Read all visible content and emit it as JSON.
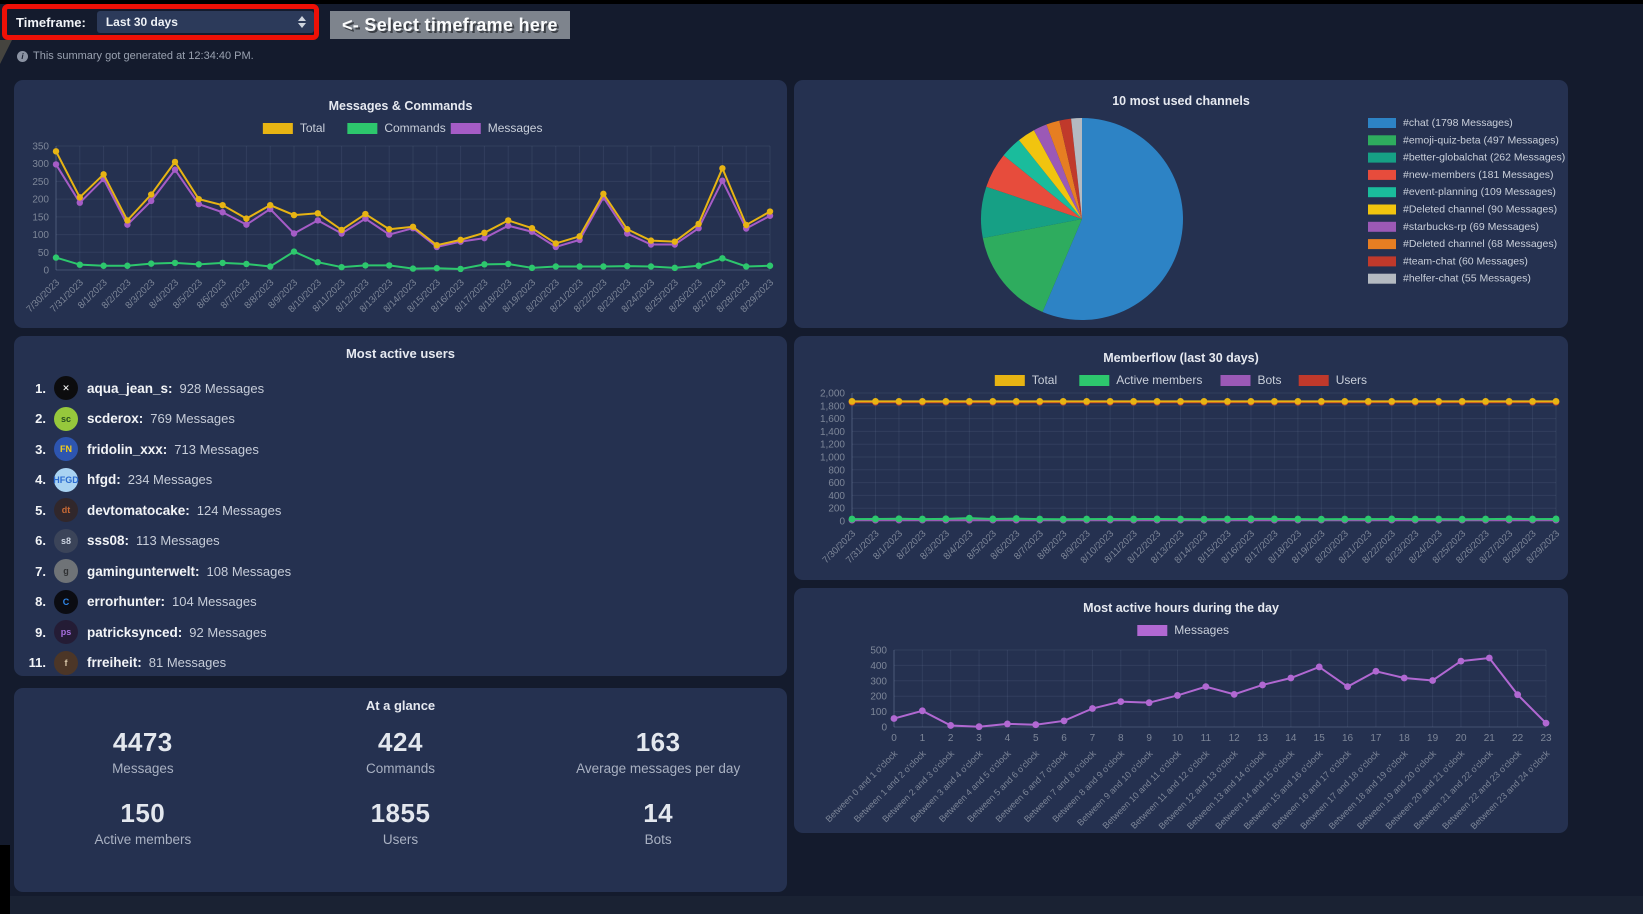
{
  "header": {
    "timeframe_label": "Timeframe:",
    "timeframe_value": "Last 30 days",
    "hint_label": "<- Select timeframe here",
    "highlight_color": "#ee1006",
    "hint_bg": "#7e848d"
  },
  "info_banner": {
    "icon": "info-icon",
    "text": "This summary got generated at 12:34:40 PM."
  },
  "most_active_users": {
    "title": "Most active users",
    "users": [
      {
        "rank": "1.",
        "name": "aqua_jean_s",
        "count": "928 Messages",
        "avatar": {
          "bg": "#0c0c0e",
          "fg": "#ffffff",
          "text": "✕"
        }
      },
      {
        "rank": "2.",
        "name": "scderox",
        "count": "769 Messages",
        "avatar": {
          "bg": "#96c83c",
          "fg": "#27501f",
          "text": "sc"
        }
      },
      {
        "rank": "3.",
        "name": "fridolin_xxx",
        "count": "713 Messages",
        "avatar": {
          "bg": "#2d55b0",
          "fg": "#f5cf1b",
          "text": "FN"
        }
      },
      {
        "rank": "4.",
        "name": "hfgd",
        "count": "234 Messages",
        "avatar": {
          "bg": "#a9d3f2",
          "fg": "#2b6bd0",
          "text": "HFGD"
        }
      },
      {
        "rank": "5.",
        "name": "devtomatocake",
        "count": "124 Messages",
        "avatar": {
          "bg": "#31272b",
          "fg": "#c96a35",
          "text": "dt"
        }
      },
      {
        "rank": "6.",
        "name": "sss08",
        "count": "113 Messages",
        "avatar": {
          "bg": "#3b4459",
          "fg": "#cdd5e2",
          "text": "s8"
        }
      },
      {
        "rank": "7.",
        "name": "gamingunterwelt",
        "count": "108 Messages",
        "avatar": {
          "bg": "#6f7377",
          "fg": "#2f3133",
          "text": "g"
        }
      },
      {
        "rank": "8.",
        "name": "errorhunter",
        "count": "104 Messages",
        "avatar": {
          "bg": "#0b0c12",
          "fg": "#2f86e8",
          "text": "C"
        }
      },
      {
        "rank": "9.",
        "name": "patricksynced",
        "count": "92 Messages",
        "avatar": {
          "bg": "#241c35",
          "fg": "#a86fe0",
          "text": "ps"
        }
      },
      {
        "rank": "11.",
        "name": "frreiheit",
        "count": "81 Messages",
        "avatar": {
          "bg": "#4c3627",
          "fg": "#d8c6a8",
          "text": "f"
        }
      }
    ]
  },
  "glance": {
    "title": "At a glance",
    "stats": [
      {
        "value": "4473",
        "label": "Messages"
      },
      {
        "value": "424",
        "label": "Commands"
      },
      {
        "value": "163",
        "label": "Average messages per day"
      },
      {
        "value": "150",
        "label": "Active members"
      },
      {
        "value": "1855",
        "label": "Users"
      },
      {
        "value": "14",
        "label": "Bots"
      }
    ]
  },
  "chart_data": [
    {
      "id": "messages_commands",
      "type": "line",
      "title": "Messages & Commands",
      "ylim": [
        0,
        350
      ],
      "ytick": 50,
      "grid": true,
      "legend_position": "top",
      "x": [
        "7/30/2023",
        "7/31/2023",
        "8/1/2023",
        "8/2/2023",
        "8/3/2023",
        "8/4/2023",
        "8/5/2023",
        "8/6/2023",
        "8/7/2023",
        "8/8/2023",
        "8/9/2023",
        "8/10/2023",
        "8/11/2023",
        "8/12/2023",
        "8/13/2023",
        "8/14/2023",
        "8/15/2023",
        "8/16/2023",
        "8/17/2023",
        "8/18/2023",
        "8/19/2023",
        "8/20/2023",
        "8/21/2023",
        "8/22/2023",
        "8/23/2023",
        "8/24/2023",
        "8/25/2023",
        "8/26/2023",
        "8/27/2023",
        "8/28/2023",
        "8/29/2023"
      ],
      "series": [
        {
          "name": "Total",
          "color": "#e7b413",
          "values": [
            335,
            205,
            270,
            140,
            213,
            305,
            200,
            183,
            145,
            183,
            155,
            160,
            113,
            158,
            115,
            122,
            70,
            85,
            105,
            140,
            118,
            75,
            95,
            215,
            115,
            83,
            80,
            130,
            287,
            127,
            165
          ]
        },
        {
          "name": "Commands",
          "color": "#2dc76d",
          "values": [
            35,
            15,
            12,
            12,
            18,
            20,
            16,
            20,
            17,
            10,
            52,
            22,
            8,
            13,
            13,
            4,
            5,
            3,
            16,
            17,
            6,
            10,
            10,
            10,
            11,
            10,
            6,
            12,
            33,
            10,
            12
          ]
        },
        {
          "name": "Messages",
          "color": "#a55cc6",
          "values": [
            298,
            190,
            257,
            128,
            195,
            283,
            186,
            163,
            128,
            172,
            103,
            140,
            103,
            145,
            100,
            118,
            65,
            80,
            90,
            125,
            108,
            65,
            85,
            205,
            103,
            72,
            72,
            118,
            252,
            117,
            153
          ]
        }
      ]
    },
    {
      "id": "channels_pie",
      "type": "pie",
      "title": "10 most used channels",
      "legend_position": "right",
      "labels": [
        "#chat (1798 Messages)",
        "#emoji-quiz-beta (497 Messages)",
        "#better-globalchat (262 Messages)",
        "#new-members (181 Messages)",
        "#event-planning (109 Messages)",
        "#Deleted channel (90 Messages)",
        "#starbucks-rp (69 Messages)",
        "#Deleted channel (68 Messages)",
        "#team-chat (60 Messages)",
        "#helfer-chat (55 Messages)"
      ],
      "values": [
        1798,
        497,
        262,
        181,
        109,
        90,
        69,
        68,
        60,
        55
      ],
      "colors": [
        "#2d83c5",
        "#2eac5e",
        "#16a085",
        "#e74c3c",
        "#1abc9c",
        "#f1c40f",
        "#9b59b6",
        "#e67e22",
        "#c0392b",
        "#b4bac1"
      ]
    },
    {
      "id": "memberflow",
      "type": "line",
      "title": "Memberflow (last 30 days)",
      "ylim": [
        0,
        2000
      ],
      "ytick": 200,
      "y_format": "comma",
      "grid": true,
      "legend_position": "top",
      "x": [
        "7/30/2023",
        "7/31/2023",
        "8/1/2023",
        "8/2/2023",
        "8/3/2023",
        "8/4/2023",
        "8/5/2023",
        "8/6/2023",
        "8/7/2023",
        "8/8/2023",
        "8/9/2023",
        "8/10/2023",
        "8/11/2023",
        "8/12/2023",
        "8/13/2023",
        "8/14/2023",
        "8/15/2023",
        "8/16/2023",
        "8/17/2023",
        "8/18/2023",
        "8/19/2023",
        "8/20/2023",
        "8/21/2023",
        "8/22/2023",
        "8/23/2023",
        "8/24/2023",
        "8/25/2023",
        "8/26/2023",
        "8/27/2023",
        "8/28/2023",
        "8/29/2023"
      ],
      "series": [
        {
          "name": "Total",
          "color": "#e7b413",
          "values": [
            1869,
            1869,
            1869,
            1869,
            1869,
            1869,
            1869,
            1869,
            1869,
            1869,
            1869,
            1869,
            1869,
            1869,
            1869,
            1869,
            1869,
            1869,
            1869,
            1869,
            1869,
            1869,
            1869,
            1869,
            1869,
            1869,
            1869,
            1869,
            1869,
            1869,
            1869
          ]
        },
        {
          "name": "Active members",
          "color": "#2dc76d",
          "values": [
            30,
            32,
            35,
            30,
            34,
            44,
            32,
            38,
            30,
            28,
            30,
            32,
            30,
            32,
            30,
            28,
            30,
            34,
            32,
            30,
            28,
            30,
            30,
            32,
            30,
            30,
            28,
            30,
            34,
            30,
            32
          ]
        },
        {
          "name": "Bots",
          "color": "#9b59b6",
          "values": [
            14,
            14,
            14,
            14,
            14,
            14,
            14,
            14,
            14,
            14,
            14,
            14,
            14,
            14,
            14,
            14,
            14,
            14,
            14,
            14,
            14,
            14,
            14,
            14,
            14,
            14,
            14,
            14,
            14,
            14,
            14
          ]
        },
        {
          "name": "Users",
          "color": "#c0392b",
          "values": [
            1855,
            1855,
            1855,
            1855,
            1855,
            1855,
            1855,
            1855,
            1855,
            1855,
            1855,
            1855,
            1855,
            1855,
            1855,
            1855,
            1855,
            1855,
            1855,
            1855,
            1855,
            1855,
            1855,
            1855,
            1855,
            1855,
            1855,
            1855,
            1855,
            1855,
            1855
          ]
        }
      ]
    },
    {
      "id": "active_hours",
      "type": "line",
      "title": "Most active hours during the day",
      "ylim": [
        0,
        500
      ],
      "ytick": 100,
      "grid": true,
      "legend_position": "top",
      "x": [
        "0",
        "1",
        "2",
        "3",
        "4",
        "5",
        "6",
        "7",
        "8",
        "9",
        "10",
        "11",
        "12",
        "13",
        "14",
        "15",
        "16",
        "17",
        "18",
        "19",
        "20",
        "21",
        "22",
        "23"
      ],
      "x2": [
        "Between 0 and 1 o'clock",
        "Between 1 and 2 o'clock",
        "Between 2 and 3 o'clock",
        "Between 3 and 4 o'clock",
        "Between 4 and 5 o'clock",
        "Between 5 and 6 o'clock",
        "Between 6 and 7 o'clock",
        "Between 7 and 8 o'clock",
        "Between 8 and 9 o'clock",
        "Between 9 and 10 o'clock",
        "Between 10 and 11 o'clock",
        "Between 11 and 12 o'clock",
        "Between 12 and 13 o'clock",
        "Between 13 and 14 o'clock",
        "Between 14 and 15 o'clock",
        "Between 15 and 16 o'clock",
        "Between 16 and 17 o'clock",
        "Between 17 and 18 o'clock",
        "Between 18 and 19 o'clock",
        "Between 19 and 20 o'clock",
        "Between 20 and 21 o'clock",
        "Between 21 and 22 o'clock",
        "Between 22 and 23 o'clock",
        "Between 23 and 24 o'clock"
      ],
      "series": [
        {
          "name": "Messages",
          "color": "#b168d2",
          "values": [
            55,
            105,
            10,
            2,
            20,
            15,
            40,
            120,
            165,
            158,
            205,
            262,
            212,
            273,
            318,
            390,
            262,
            362,
            318,
            302,
            428,
            448,
            210,
            25
          ]
        }
      ]
    }
  ]
}
